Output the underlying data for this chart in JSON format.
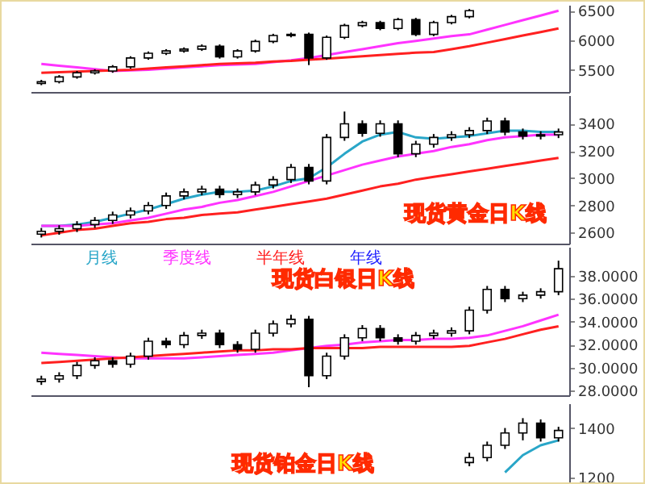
{
  "chart_data": [
    {
      "type": "candlestick",
      "categories": [
        null,
        null,
        null,
        null,
        null,
        null,
        null,
        null,
        null,
        null,
        null,
        null,
        null,
        null,
        null,
        null,
        null,
        null,
        null,
        null,
        null,
        null,
        null,
        null,
        null,
        null,
        null,
        null,
        null,
        null
      ],
      "ohlc": [
        [
          5270,
          5330,
          5240,
          5300
        ],
        [
          5300,
          5410,
          5270,
          5380
        ],
        [
          5380,
          5480,
          5350,
          5450
        ],
        [
          5450,
          5510,
          5420,
          5480
        ],
        [
          5480,
          5580,
          5450,
          5550
        ],
        [
          5550,
          5730,
          5520,
          5700
        ],
        [
          5700,
          5810,
          5670,
          5780
        ],
        [
          5780,
          5850,
          5750,
          5820
        ],
        [
          5820,
          5880,
          5790,
          5850
        ],
        [
          5850,
          5930,
          5820,
          5900
        ],
        [
          5900,
          5930,
          5690,
          5720
        ],
        [
          5720,
          5850,
          5690,
          5820
        ],
        [
          5820,
          6010,
          5790,
          5980
        ],
        [
          5980,
          6110,
          5950,
          6080
        ],
        [
          6080,
          6130,
          6050,
          6100
        ],
        [
          6100,
          6130,
          5580,
          5700
        ],
        [
          5700,
          6080,
          5670,
          6050
        ],
        [
          6050,
          6280,
          6020,
          6250
        ],
        [
          6250,
          6330,
          6220,
          6300
        ],
        [
          6300,
          6330,
          6170,
          6200
        ],
        [
          6200,
          6380,
          6170,
          6350
        ],
        [
          6350,
          6380,
          6070,
          6100
        ],
        [
          6100,
          6330,
          6070,
          6300
        ],
        [
          6300,
          6430,
          6270,
          6400
        ],
        [
          6400,
          6530,
          6370,
          6500
        ],
        null,
        null,
        null,
        null,
        null
      ],
      "series": [
        {
          "type": "line",
          "color": "#ff33ff",
          "values": [
            5600,
            5570,
            5540,
            5510,
            5480,
            5490,
            5500,
            5520,
            5540,
            5560,
            5580,
            5590,
            5600,
            5630,
            5660,
            5700,
            5750,
            5800,
            5850,
            5900,
            5950,
            5990,
            6030,
            6070,
            6100,
            6180,
            6260,
            6340,
            6420,
            6500
          ]
        },
        {
          "type": "line",
          "color": "#ff2020",
          "values": [
            5450,
            5460,
            5470,
            5480,
            5490,
            5500,
            5520,
            5540,
            5560,
            5580,
            5600,
            5610,
            5620,
            5640,
            5650,
            5670,
            5690,
            5710,
            5730,
            5750,
            5770,
            5790,
            5800,
            5850,
            5900,
            5960,
            6020,
            6080,
            6140,
            6200
          ]
        }
      ],
      "ylim": [
        5125,
        6600
      ],
      "yticks": [
        5500,
        6000,
        6500
      ],
      "tick_labels": "y",
      "grid": false,
      "legend": false
    },
    {
      "type": "candlestick",
      "categories": [
        null,
        null,
        null,
        null,
        null,
        null,
        null,
        null,
        null,
        null,
        null,
        null,
        null,
        null,
        null,
        null,
        null,
        null,
        null,
        null,
        null,
        null,
        null,
        null,
        null,
        null,
        null,
        null,
        null,
        null
      ],
      "ohlc": [
        [
          2590,
          2635,
          2565,
          2610
        ],
        [
          2610,
          2655,
          2585,
          2630
        ],
        [
          2630,
          2685,
          2605,
          2660
        ],
        [
          2660,
          2715,
          2635,
          2690
        ],
        [
          2690,
          2755,
          2665,
          2730
        ],
        [
          2730,
          2785,
          2705,
          2760
        ],
        [
          2760,
          2825,
          2735,
          2800
        ],
        [
          2800,
          2895,
          2775,
          2870
        ],
        [
          2870,
          2925,
          2845,
          2900
        ],
        [
          2900,
          2945,
          2875,
          2920
        ],
        [
          2920,
          2945,
          2855,
          2880
        ],
        [
          2880,
          2925,
          2855,
          2900
        ],
        [
          2900,
          2975,
          2875,
          2950
        ],
        [
          2950,
          3015,
          2925,
          2990
        ],
        [
          2990,
          3105,
          2965,
          3080
        ],
        [
          3080,
          3105,
          2955,
          2980
        ],
        [
          2980,
          3325,
          2955,
          3300
        ],
        [
          3300,
          3490,
          3275,
          3400
        ],
        [
          3400,
          3425,
          3305,
          3330
        ],
        [
          3330,
          3425,
          3305,
          3400
        ],
        [
          3400,
          3425,
          3155,
          3180
        ],
        [
          3180,
          3275,
          3155,
          3250
        ],
        [
          3250,
          3325,
          3225,
          3300
        ],
        [
          3300,
          3345,
          3275,
          3320
        ],
        [
          3320,
          3375,
          3295,
          3350
        ],
        [
          3350,
          3445,
          3325,
          3420
        ],
        [
          3420,
          3445,
          3315,
          3340
        ],
        [
          3340,
          3365,
          3285,
          3310
        ],
        [
          3310,
          3345,
          3285,
          3320
        ],
        [
          3320,
          3365,
          3295,
          3340
        ]
      ],
      "series": [
        {
          "type": "line",
          "color": "#29a6c8",
          "values": [
            2650,
            2650,
            2660,
            2680,
            2710,
            2740,
            2770,
            2810,
            2850,
            2880,
            2900,
            2900,
            2910,
            2940,
            2980,
            3000,
            3080,
            3180,
            3270,
            3320,
            3340,
            3300,
            3290,
            3300,
            3310,
            3330,
            3350,
            3350,
            3340,
            3340
          ]
        },
        {
          "type": "line",
          "color": "#ff33ff",
          "values": [
            2650,
            2650,
            2650,
            2660,
            2670,
            2690,
            2710,
            2740,
            2770,
            2790,
            2820,
            2840,
            2870,
            2900,
            2940,
            2980,
            3020,
            3060,
            3100,
            3130,
            3160,
            3180,
            3200,
            3230,
            3250,
            3280,
            3300,
            3310,
            3320,
            3320
          ]
        },
        {
          "type": "line",
          "color": "#ff2020",
          "values": [
            2580,
            2600,
            2620,
            2630,
            2650,
            2670,
            2680,
            2700,
            2710,
            2730,
            2740,
            2750,
            2770,
            2790,
            2810,
            2830,
            2850,
            2880,
            2910,
            2940,
            2960,
            2990,
            3010,
            3030,
            3050,
            3070,
            3090,
            3110,
            3130,
            3150
          ]
        }
      ],
      "ylim": [
        2520,
        3610
      ],
      "yticks": [
        2600,
        2800,
        3000,
        3200,
        3400
      ],
      "tick_labels": "y",
      "grid": false,
      "legend": false,
      "annotations": [
        "现货黄金日K线"
      ]
    },
    {
      "type": "candlestick",
      "categories": [
        null,
        null,
        null,
        null,
        null,
        null,
        null,
        null,
        null,
        null,
        null,
        null,
        null,
        null,
        null,
        null,
        null,
        null,
        null,
        null,
        null,
        null,
        null,
        null,
        null,
        null,
        null,
        null,
        null,
        null
      ],
      "ohlc": [
        [
          28.8,
          29.3,
          28.5,
          29.0
        ],
        [
          29.0,
          29.6,
          28.7,
          29.3
        ],
        [
          29.3,
          30.5,
          29.0,
          30.2
        ],
        [
          30.2,
          30.9,
          29.9,
          30.6
        ],
        [
          30.6,
          30.9,
          30.0,
          30.3
        ],
        [
          30.3,
          31.3,
          30.0,
          31.0
        ],
        [
          31.0,
          32.6,
          30.7,
          32.3
        ],
        [
          32.3,
          32.6,
          31.7,
          32.0
        ],
        [
          32.0,
          33.1,
          31.7,
          32.8
        ],
        [
          32.8,
          33.3,
          32.5,
          33.0
        ],
        [
          33.0,
          33.3,
          31.7,
          32.0
        ],
        [
          32.0,
          32.3,
          31.3,
          31.6
        ],
        [
          31.6,
          33.3,
          31.3,
          33.0
        ],
        [
          33.0,
          34.1,
          32.7,
          33.8
        ],
        [
          33.8,
          34.6,
          33.5,
          34.2
        ],
        [
          34.2,
          34.5,
          28.3,
          29.3
        ],
        [
          29.3,
          31.3,
          29.0,
          31.0
        ],
        [
          31.0,
          32.9,
          30.7,
          32.6
        ],
        [
          32.6,
          33.7,
          32.3,
          33.4
        ],
        [
          33.4,
          33.7,
          32.3,
          32.6
        ],
        [
          32.6,
          32.9,
          32.0,
          32.3
        ],
        [
          32.3,
          33.1,
          32.0,
          32.8
        ],
        [
          32.8,
          33.3,
          32.5,
          33.0
        ],
        [
          33.0,
          33.5,
          32.7,
          33.2
        ],
        [
          33.2,
          35.3,
          32.9,
          35.0
        ],
        [
          35.0,
          37.1,
          34.7,
          36.8
        ],
        [
          36.8,
          37.1,
          35.7,
          36.0
        ],
        [
          36.0,
          36.6,
          35.7,
          36.3
        ],
        [
          36.3,
          36.9,
          36.0,
          36.6
        ],
        [
          36.6,
          39.3,
          36.3,
          38.6
        ]
      ],
      "series": [
        {
          "type": "line",
          "name": "月线",
          "color": "#29a6c8",
          "values": [
            null,
            null,
            null,
            null,
            null,
            null,
            null,
            null,
            null,
            null,
            null,
            null,
            null,
            null,
            null,
            null,
            null,
            null,
            null,
            null,
            null,
            null,
            null,
            null,
            null,
            null,
            null,
            null,
            null,
            null
          ]
        },
        {
          "type": "line",
          "name": "季度线",
          "color": "#ff33ff",
          "values": [
            31.3,
            31.2,
            31.1,
            31.0,
            30.9,
            30.8,
            30.8,
            30.8,
            30.8,
            30.9,
            31.0,
            31.1,
            31.2,
            31.3,
            31.5,
            31.7,
            31.9,
            32.0,
            32.2,
            32.3,
            32.4,
            32.4,
            32.5,
            32.5,
            32.6,
            32.8,
            33.2,
            33.6,
            34.1,
            34.6
          ]
        },
        {
          "type": "line",
          "name": "半年线",
          "color": "#ff2020",
          "values": [
            30.4,
            30.5,
            30.6,
            30.7,
            30.8,
            30.9,
            31.0,
            31.1,
            31.2,
            31.3,
            31.4,
            31.5,
            31.5,
            31.6,
            31.6,
            31.7,
            31.7,
            31.7,
            31.7,
            31.8,
            31.8,
            31.8,
            31.8,
            31.8,
            31.9,
            32.2,
            32.5,
            32.9,
            33.3,
            33.6
          ]
        },
        {
          "type": "line",
          "name": "年线",
          "color": "#2020ff",
          "values": [
            null,
            null,
            null,
            null,
            null,
            null,
            null,
            null,
            null,
            null,
            null,
            null,
            null,
            null,
            null,
            null,
            null,
            null,
            null,
            null,
            null,
            null,
            null,
            null,
            null,
            null,
            null,
            null,
            null,
            null
          ]
        }
      ],
      "ylim": [
        27.6,
        40.5
      ],
      "yticks": [
        {
          "value": 28,
          "label": "28.0000"
        },
        {
          "value": 30,
          "label": "30.0000"
        },
        {
          "value": 32,
          "label": "32.0000"
        },
        {
          "value": 34,
          "label": "34.0000"
        },
        {
          "value": 36,
          "label": "36.0000"
        },
        {
          "value": 38,
          "label": "38.0000"
        }
      ],
      "tick_labels": "y",
      "grid": false,
      "legend": "top left",
      "annotations": [
        "现货白银日K线"
      ]
    },
    {
      "type": "candlestick",
      "categories": [
        null,
        null,
        null,
        null,
        null,
        null,
        null,
        null,
        null,
        null,
        null,
        null,
        null,
        null,
        null,
        null,
        null,
        null,
        null,
        null,
        null,
        null,
        null,
        null,
        null,
        null,
        null,
        null,
        null,
        null
      ],
      "ohlc": [
        null,
        null,
        null,
        null,
        null,
        null,
        null,
        null,
        null,
        null,
        null,
        null,
        null,
        null,
        null,
        null,
        null,
        null,
        null,
        null,
        null,
        null,
        null,
        null,
        [
          1260,
          1300,
          1245,
          1280
        ],
        [
          1280,
          1345,
          1265,
          1330
        ],
        [
          1330,
          1400,
          1315,
          1380
        ],
        [
          1380,
          1440,
          1350,
          1420
        ],
        [
          1420,
          1435,
          1345,
          1360
        ],
        [
          1360,
          1405,
          1345,
          1390
        ]
      ],
      "series": [
        {
          "type": "line",
          "color": "#29a6c8",
          "values": [
            null,
            null,
            null,
            null,
            null,
            null,
            null,
            null,
            null,
            null,
            null,
            null,
            null,
            null,
            null,
            null,
            null,
            null,
            null,
            null,
            null,
            null,
            null,
            null,
            null,
            null,
            1220,
            1290,
            1330,
            1350
          ]
        }
      ],
      "ylim": [
        1160,
        1500
      ],
      "yticks": [
        1200,
        1400
      ],
      "tick_labels": "y",
      "grid": false,
      "legend": false,
      "annotations": [
        "现货铂金日K线"
      ]
    }
  ]
}
